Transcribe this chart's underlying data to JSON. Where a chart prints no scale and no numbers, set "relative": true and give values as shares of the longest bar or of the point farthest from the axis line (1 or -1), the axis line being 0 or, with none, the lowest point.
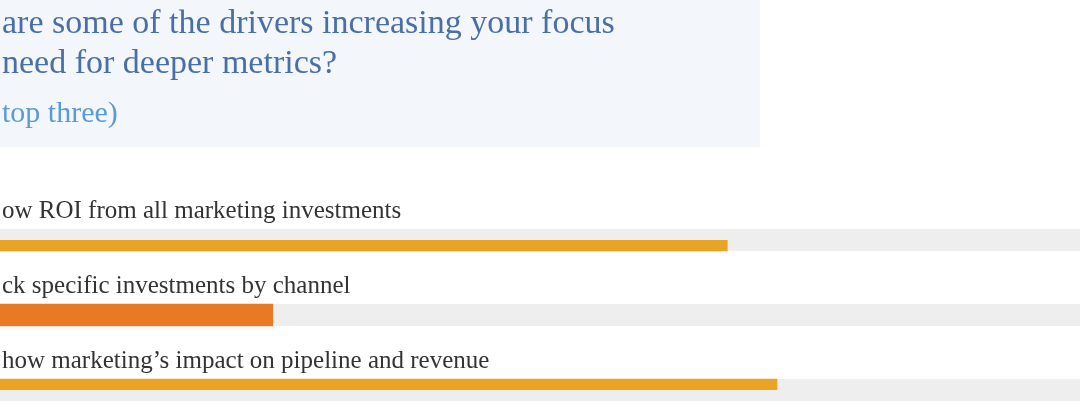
{
  "chart_data": {
    "type": "bar",
    "orientation": "horizontal",
    "relative": true,
    "title": "are some of the drivers increasing your focus\nneed for deeper metrics?",
    "subtitle": "top three)",
    "categories": [
      "ow ROI from all marketing investments",
      "ck specific investments by channel",
      "how marketing’s impact on pipeline and revenue"
    ],
    "values": [
      0.936,
      0.351,
      1
    ],
    "colors": [
      "#e9a426",
      "#e87a25",
      "#e9a426"
    ],
    "legend": false
  }
}
